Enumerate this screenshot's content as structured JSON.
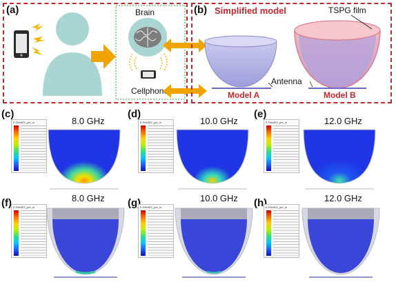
{
  "panels": {
    "a": "(a)",
    "b": "(b)",
    "c": "(c)",
    "d": "(d)",
    "e": "(e)",
    "f": "(f)",
    "g": "(g)",
    "h": "(h)"
  },
  "diagram": {
    "brain_label": "Brain",
    "cellphone_label": "Cellphone",
    "simplified_model": "Simplified model",
    "tspg_film": "TSPG film",
    "antenna": "Antenna",
    "model_a": "Model A",
    "model_b": "Model B"
  },
  "legend_title": "E FieldEX_per_m",
  "frequencies": {
    "c": "8.0 GHz",
    "d": "10.0 GHz",
    "e": "12.0 GHz",
    "f": "8.0 GHz",
    "g": "10.0 GHz",
    "h": "12.0 GHz"
  },
  "colors": {
    "dashed_box": "#c0272d",
    "simplified_model_text": "#c0272d",
    "model_label_text": "#c0272d",
    "person": "#a9d6d2",
    "arrow": "#f0a400",
    "field_blue": "#1f35e6",
    "tspg_film": "#e8a0a8"
  }
}
